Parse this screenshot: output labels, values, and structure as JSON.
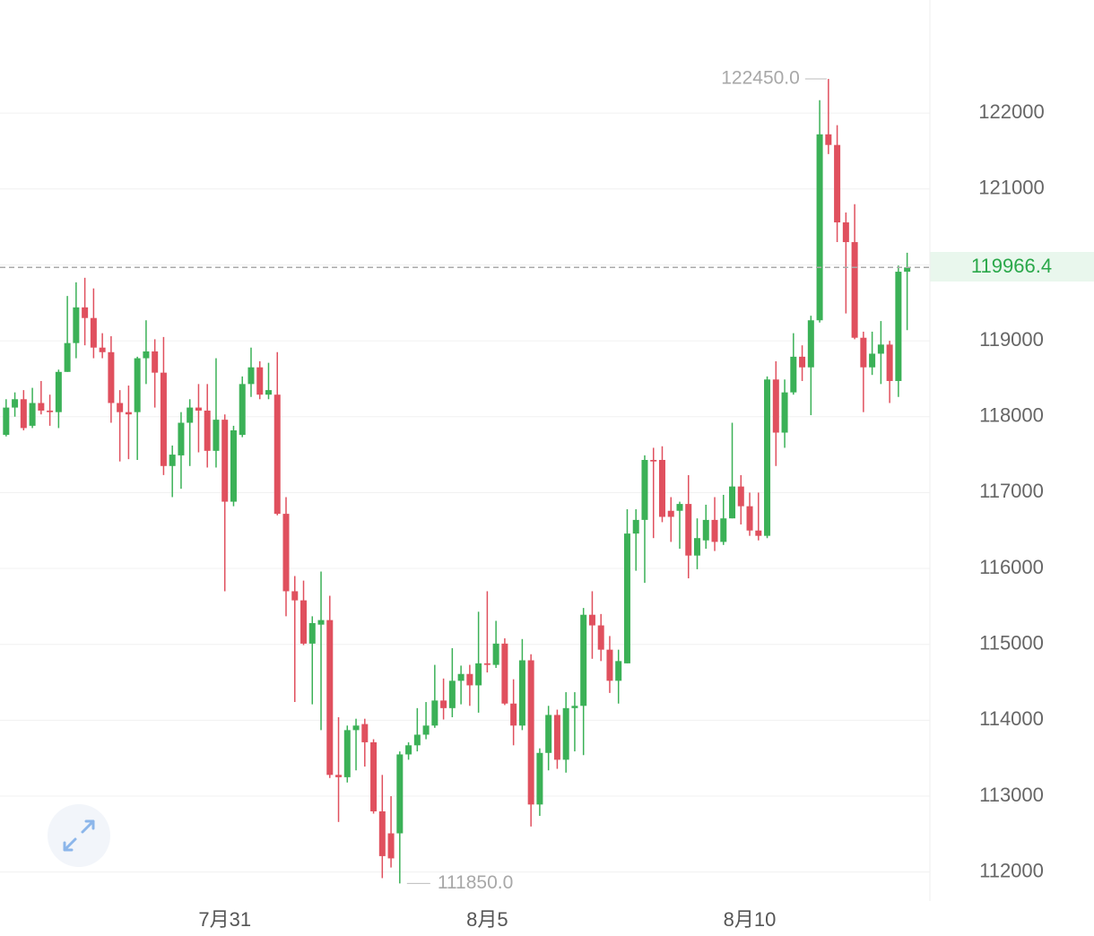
{
  "chart_data": {
    "type": "candlestick",
    "up_color": "#3bb157",
    "down_color": "#e0505e",
    "grid": true,
    "price_color": "#2aa84a",
    "xlim": [
      -0.7,
      105.6
    ],
    "xticks": [
      {
        "value": 25,
        "label": "7月31"
      },
      {
        "value": 55,
        "label": "8月5"
      },
      {
        "value": 85,
        "label": "8月10"
      }
    ],
    "ylim": [
      111630,
      123490
    ],
    "yticks": [
      112000,
      113000,
      114000,
      115000,
      116000,
      117000,
      118000,
      119000,
      120000,
      121000,
      122000
    ],
    "hidden_yticks": [
      120000
    ],
    "current_price": 119966.4,
    "annotations": [
      {
        "value": 122450,
        "label": "122450.0",
        "x": 94
      },
      {
        "value": 111850,
        "label": "111850.0",
        "x": 45
      }
    ],
    "open": [
      117760,
      118120,
      118230,
      117880,
      118180,
      118080,
      118060,
      118590,
      118970,
      119440,
      119300,
      118910,
      118850,
      118180,
      118060,
      118060,
      118770,
      118860,
      118580,
      117350,
      117490,
      117920,
      118120,
      118080,
      117550,
      117960,
      116880,
      117760,
      118430,
      118650,
      118290,
      118290,
      116720,
      115700,
      115580,
      115010,
      115260,
      115320,
      113280,
      113250,
      113870,
      113950,
      113710,
      112800,
      112510,
      112510,
      113550,
      113670,
      113810,
      113930,
      114260,
      114160,
      114520,
      114610,
      114460,
      114750,
      114730,
      115010,
      114220,
      113930,
      114790,
      112890,
      113570,
      114070,
      113480,
      114160,
      114190,
      115390,
      115250,
      114930,
      114520,
      114750,
      116460,
      116640,
      117430,
      117430,
      116760,
      116760,
      116850,
      116170,
      116370,
      116640,
      116350,
      116660,
      117080,
      116820,
      116500,
      116430,
      118490,
      117790,
      118320,
      118790,
      118650,
      119270,
      121720,
      121580,
      120560,
      120300,
      119040,
      118650,
      118830,
      118950,
      118470,
      119910
    ],
    "high": [
      118230,
      118320,
      118350,
      118380,
      118470,
      118290,
      118620,
      119590,
      119770,
      119830,
      119690,
      119100,
      119060,
      118350,
      118410,
      118790,
      119270,
      119020,
      119050,
      117620,
      118060,
      118230,
      118430,
      118430,
      118770,
      118030,
      117880,
      118530,
      118910,
      118730,
      118710,
      118850,
      116940,
      115900,
      115840,
      115370,
      115960,
      115640,
      114040,
      113930,
      114020,
      114020,
      113750,
      113280,
      113000,
      113590,
      113710,
      114160,
      114240,
      114730,
      114550,
      114950,
      114720,
      114730,
      115430,
      115700,
      115310,
      115080,
      114540,
      115070,
      114870,
      113630,
      114190,
      114140,
      114370,
      114370,
      115480,
      115700,
      115400,
      115110,
      114930,
      116780,
      116780,
      117490,
      117590,
      117610,
      116940,
      116880,
      117230,
      116660,
      116840,
      116940,
      116970,
      117920,
      117230,
      117000,
      117000,
      118530,
      118730,
      118490,
      119100,
      118940,
      119330,
      122170,
      122450,
      121840,
      120690,
      120800,
      119120,
      119120,
      119260,
      119000,
      119990,
      120160
    ],
    "low": [
      117740,
      118000,
      117820,
      117850,
      118030,
      117880,
      117850,
      118590,
      118770,
      118940,
      118770,
      118770,
      117920,
      117410,
      117440,
      117430,
      118430,
      118120,
      117230,
      116940,
      117050,
      117350,
      117530,
      117330,
      117330,
      115700,
      116820,
      117730,
      118260,
      118230,
      118230,
      116700,
      115370,
      114240,
      114990,
      114210,
      113870,
      113240,
      112660,
      113180,
      113340,
      113390,
      112770,
      111920,
      112060,
      111850,
      113480,
      113590,
      113750,
      113900,
      114010,
      114040,
      114210,
      114190,
      114100,
      114630,
      114690,
      114200,
      113670,
      113870,
      112600,
      112740,
      113340,
      113360,
      113310,
      113590,
      113540,
      114810,
      114780,
      114360,
      114220,
      114750,
      115970,
      115810,
      116400,
      116610,
      116350,
      116260,
      115870,
      115990,
      116260,
      116230,
      116310,
      116660,
      116580,
      116430,
      116370,
      116400,
      117350,
      117590,
      118290,
      118470,
      118020,
      119240,
      121460,
      120300,
      119360,
      119020,
      118060,
      118550,
      118430,
      118180,
      118260,
      119140
    ],
    "close": [
      118120,
      118230,
      117850,
      118180,
      118080,
      118060,
      118590,
      118970,
      119440,
      119300,
      118910,
      118850,
      118180,
      118060,
      118030,
      118770,
      118860,
      118580,
      117350,
      117500,
      117920,
      118120,
      118080,
      117550,
      117960,
      116880,
      117820,
      118430,
      118650,
      118290,
      118350,
      116720,
      115700,
      115580,
      115010,
      115280,
      115320,
      113280,
      113250,
      113870,
      113930,
      113710,
      112800,
      112210,
      112180,
      113550,
      113670,
      113810,
      113930,
      114260,
      114160,
      114520,
      114610,
      114460,
      114750,
      114730,
      115010,
      114220,
      113930,
      114790,
      112890,
      113570,
      114070,
      113480,
      114160,
      114190,
      115390,
      115250,
      114930,
      114520,
      114780,
      116460,
      116640,
      117430,
      117410,
      116680,
      116680,
      116850,
      116170,
      116400,
      116640,
      116350,
      116660,
      117080,
      116820,
      116500,
      116430,
      118490,
      117790,
      118320,
      118790,
      118650,
      119270,
      121720,
      121580,
      120560,
      120300,
      119040,
      118650,
      118830,
      118950,
      118470,
      119910,
      119966.4
    ]
  }
}
